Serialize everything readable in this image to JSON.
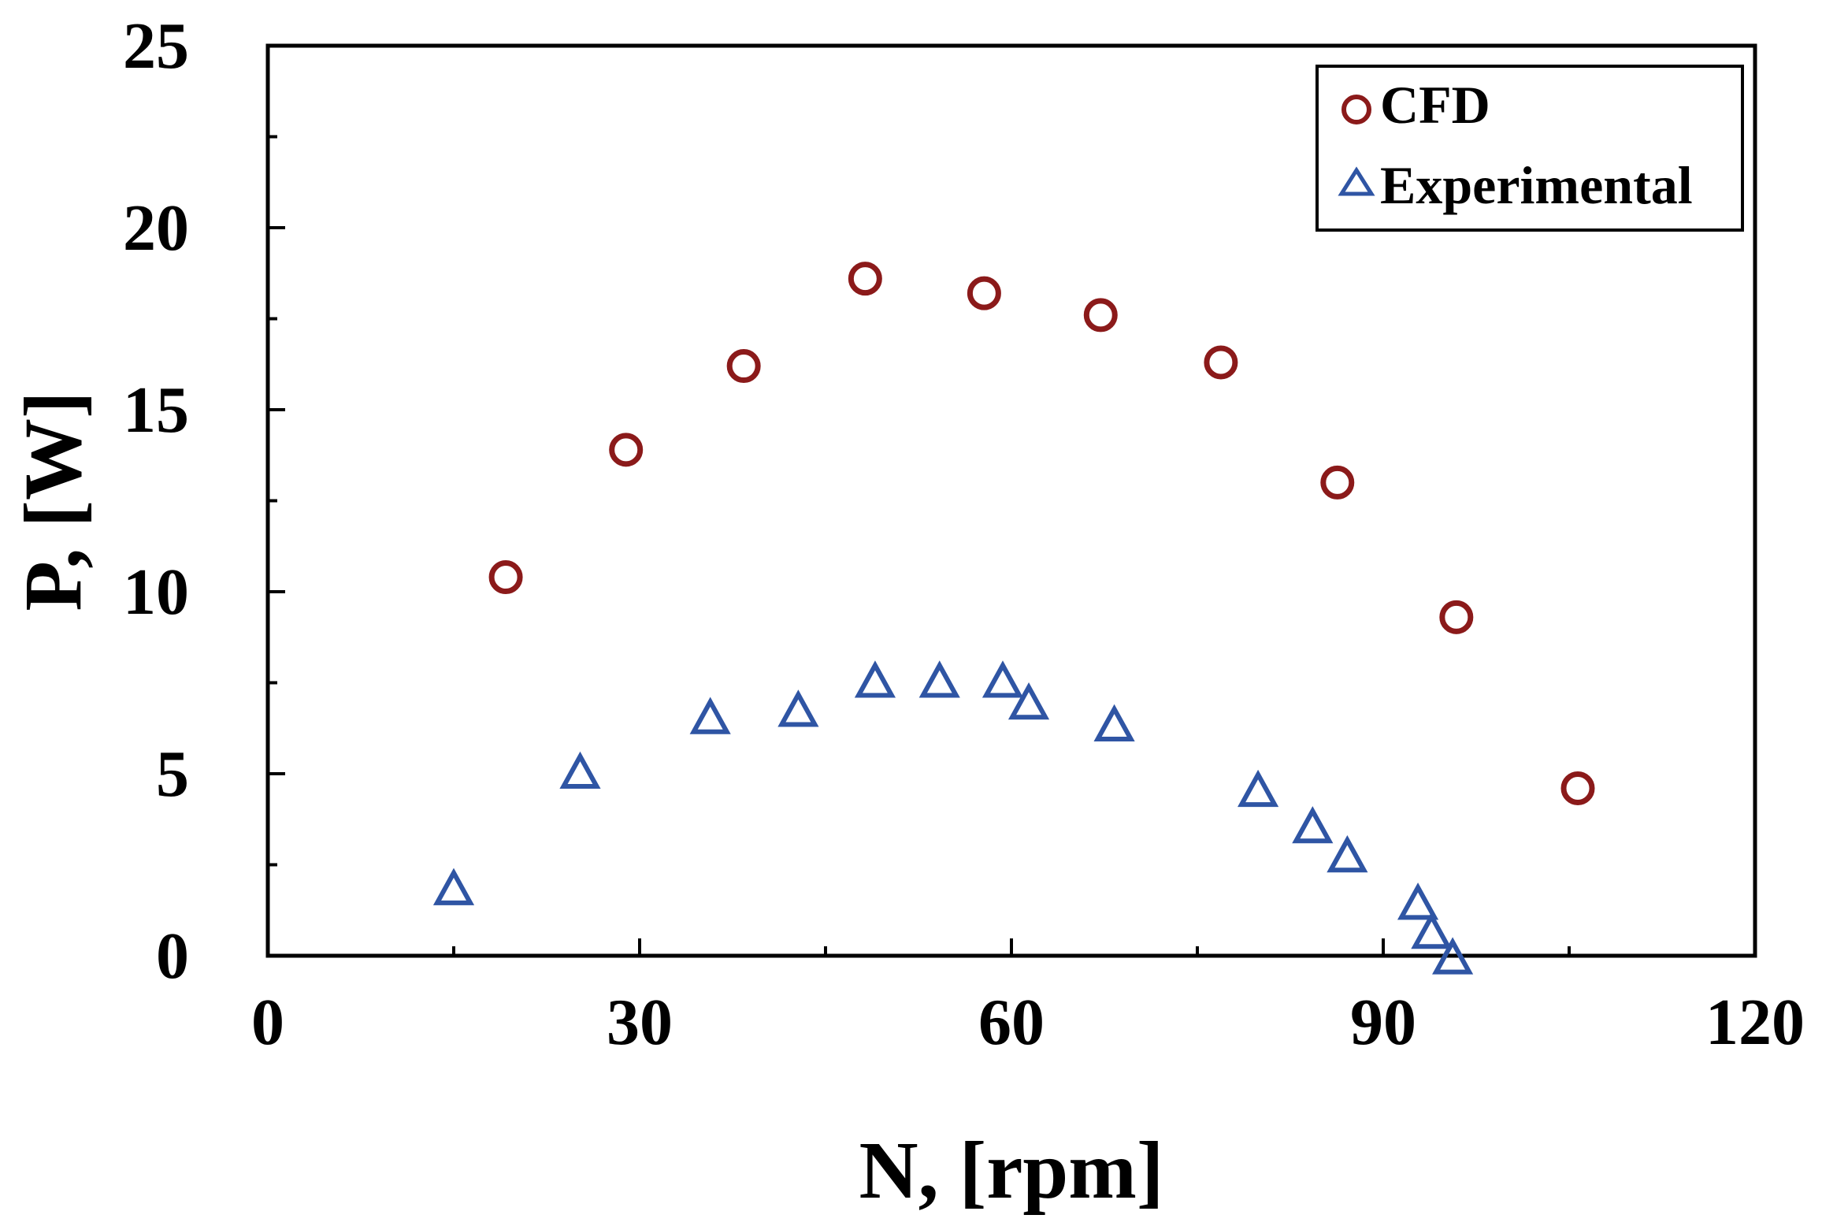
{
  "chart_data": {
    "type": "scatter",
    "title": "",
    "xlabel": "N, [rpm]",
    "ylabel": "P, [W]",
    "xlim": [
      0,
      120
    ],
    "ylim": [
      0,
      25
    ],
    "x_ticks": [
      0,
      30,
      60,
      90,
      120
    ],
    "y_ticks": [
      0,
      5,
      10,
      15,
      20,
      25
    ],
    "x_tick_labels": [
      "0",
      "30",
      "60",
      "90",
      "120"
    ],
    "y_tick_labels": [
      "0",
      "5",
      "10",
      "15",
      "20",
      "25"
    ],
    "x_minor_step": 15,
    "y_minor_step": 2.5,
    "grid": false,
    "legend_position": "top-right",
    "series": [
      {
        "name": "CFD",
        "marker": "circle",
        "color": "#8b1a1a",
        "x": [
          19.2,
          28.9,
          38.4,
          48.2,
          57.8,
          67.2,
          76.9,
          86.3,
          95.9,
          105.7
        ],
        "y": [
          10.4,
          13.9,
          16.2,
          18.6,
          18.2,
          17.6,
          16.3,
          13.0,
          9.3,
          4.6
        ]
      },
      {
        "name": "Experimental",
        "marker": "triangle",
        "color": "#2f55a4",
        "x": [
          15.0,
          25.2,
          35.7,
          42.8,
          49.0,
          54.2,
          59.3,
          61.4,
          68.3,
          79.9,
          84.3,
          87.1,
          92.8,
          93.9,
          95.6
        ],
        "y": [
          1.8,
          5.0,
          6.5,
          6.7,
          7.5,
          7.5,
          7.5,
          6.9,
          6.3,
          4.5,
          3.5,
          2.7,
          1.4,
          0.6,
          -0.1
        ]
      }
    ]
  }
}
